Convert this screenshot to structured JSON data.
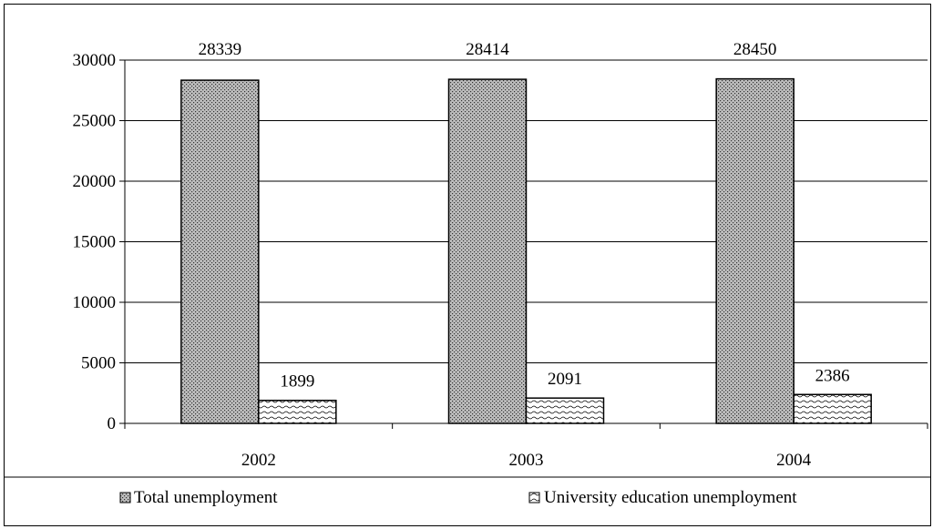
{
  "chart_data": {
    "type": "bar",
    "categories": [
      "2002",
      "2003",
      "2004"
    ],
    "series": [
      {
        "name": "Total unemployment",
        "values": [
          28339,
          28414,
          28450
        ],
        "pattern": "dense-dots"
      },
      {
        "name": "University education unemployment",
        "values": [
          1899,
          2091,
          2386
        ],
        "pattern": "wavy"
      }
    ],
    "ylim": [
      0,
      30000
    ],
    "yticks": [
      "0",
      "5000",
      "10000",
      "15000",
      "20000",
      "25000",
      "30000"
    ],
    "data_labels": [
      [
        "28339",
        "28414",
        "28450"
      ],
      [
        "1899",
        "2091",
        "2386"
      ]
    ],
    "grid": true,
    "legend_position": "bottom",
    "title": "",
    "xlabel": "",
    "ylabel": ""
  }
}
